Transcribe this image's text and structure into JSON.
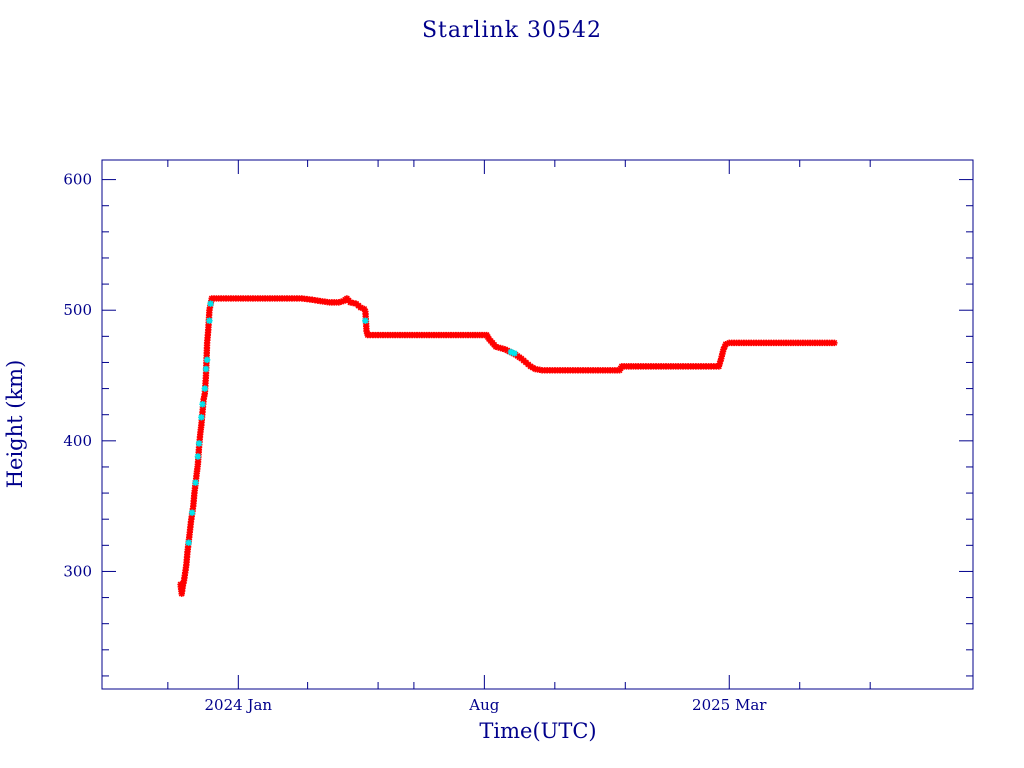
{
  "chart_data": {
    "type": "scatter",
    "title": "Starlink 30542",
    "xlabel": "Time(UTC)",
    "ylabel": "Height (km)",
    "xlim": [
      "2023-09-05",
      "2025-09-28"
    ],
    "ylim": [
      210,
      615
    ],
    "x_ticks": [
      {
        "date": "2024-01-01",
        "label": "2024 Jan"
      },
      {
        "date": "2024-08-01",
        "label": "Aug"
      },
      {
        "date": "2025-03-01",
        "label": "2025 Mar"
      }
    ],
    "y_ticks": [
      300,
      400,
      500,
      600
    ],
    "grid": false,
    "legend": "none",
    "colors": {
      "primary": "#ff0000",
      "secondary": "#00e5ee",
      "axes": "#00008b"
    },
    "series": [
      {
        "color": "#ff0000",
        "points": [
          [
            "2023-11-12",
            290
          ],
          [
            "2023-11-13",
            283
          ],
          [
            "2023-11-14",
            289
          ],
          [
            "2023-11-15",
            293
          ],
          [
            "2023-11-17",
            305
          ],
          [
            "2023-11-18",
            315
          ],
          [
            "2023-11-20",
            330
          ],
          [
            "2023-11-21",
            338
          ],
          [
            "2023-11-23",
            350
          ],
          [
            "2023-11-24",
            360
          ],
          [
            "2023-11-26",
            375
          ],
          [
            "2023-11-27",
            382
          ],
          [
            "2023-11-28",
            395
          ],
          [
            "2023-11-29",
            405
          ],
          [
            "2023-11-30",
            412
          ],
          [
            "2023-12-01",
            422
          ],
          [
            "2023-12-02",
            432
          ],
          [
            "2023-12-03",
            436
          ],
          [
            "2023-12-04",
            450
          ],
          [
            "2023-12-05",
            475
          ],
          [
            "2023-12-06",
            485
          ],
          [
            "2023-12-07",
            500
          ],
          [
            "2023-12-09",
            509
          ],
          [
            "2023-12-15",
            509
          ],
          [
            "2024-01-01",
            509
          ],
          [
            "2024-01-20",
            509
          ],
          [
            "2024-02-10",
            509
          ],
          [
            "2024-02-25",
            509
          ],
          [
            "2024-03-05",
            508
          ],
          [
            "2024-03-12",
            507
          ],
          [
            "2024-03-20",
            506
          ],
          [
            "2024-03-28",
            506
          ],
          [
            "2024-04-01",
            507
          ],
          [
            "2024-04-04",
            509
          ],
          [
            "2024-04-07",
            506
          ],
          [
            "2024-04-12",
            505
          ],
          [
            "2024-04-16",
            502
          ],
          [
            "2024-04-19",
            501
          ],
          [
            "2024-04-20",
            499
          ],
          [
            "2024-04-21",
            484
          ],
          [
            "2024-04-22",
            481
          ],
          [
            "2024-05-01",
            481
          ],
          [
            "2024-05-20",
            481
          ],
          [
            "2024-06-10",
            481
          ],
          [
            "2024-07-01",
            481
          ],
          [
            "2024-07-20",
            481
          ],
          [
            "2024-08-01",
            481
          ],
          [
            "2024-08-03",
            481
          ],
          [
            "2024-08-05",
            478
          ],
          [
            "2024-08-08",
            475
          ],
          [
            "2024-08-11",
            472
          ],
          [
            "2024-08-15",
            471
          ],
          [
            "2024-08-19",
            470
          ],
          [
            "2024-08-28",
            466
          ],
          [
            "2024-09-02",
            463
          ],
          [
            "2024-09-06",
            460
          ],
          [
            "2024-09-10",
            457
          ],
          [
            "2024-09-14",
            455
          ],
          [
            "2024-09-20",
            454
          ],
          [
            "2024-10-10",
            454
          ],
          [
            "2024-11-01",
            454
          ],
          [
            "2024-11-20",
            454
          ],
          [
            "2024-11-26",
            454
          ],
          [
            "2024-11-28",
            457
          ],
          [
            "2024-12-10",
            457
          ],
          [
            "2025-01-01",
            457
          ],
          [
            "2025-01-20",
            457
          ],
          [
            "2025-02-20",
            457
          ],
          [
            "2025-02-22",
            463
          ],
          [
            "2025-02-24",
            470
          ],
          [
            "2025-02-26",
            474
          ],
          [
            "2025-03-01",
            475
          ],
          [
            "2025-03-20",
            475
          ],
          [
            "2025-04-15",
            475
          ],
          [
            "2025-05-10",
            475
          ],
          [
            "2025-05-31",
            475
          ]
        ]
      },
      {
        "color": "#00e5ee",
        "points": [
          [
            "2023-11-19",
            322
          ],
          [
            "2023-11-22",
            345
          ],
          [
            "2023-11-25",
            368
          ],
          [
            "2023-11-27",
            388
          ],
          [
            "2023-11-28",
            398
          ],
          [
            "2023-11-30",
            418
          ],
          [
            "2023-12-01",
            428
          ],
          [
            "2023-12-03",
            440
          ],
          [
            "2023-12-04",
            455
          ],
          [
            "2023-12-05",
            462
          ],
          [
            "2023-12-07",
            492
          ],
          [
            "2023-12-08",
            505
          ],
          [
            "2024-04-20",
            492
          ],
          [
            "2024-08-24",
            468
          ],
          [
            "2024-08-27",
            467
          ]
        ]
      }
    ]
  }
}
